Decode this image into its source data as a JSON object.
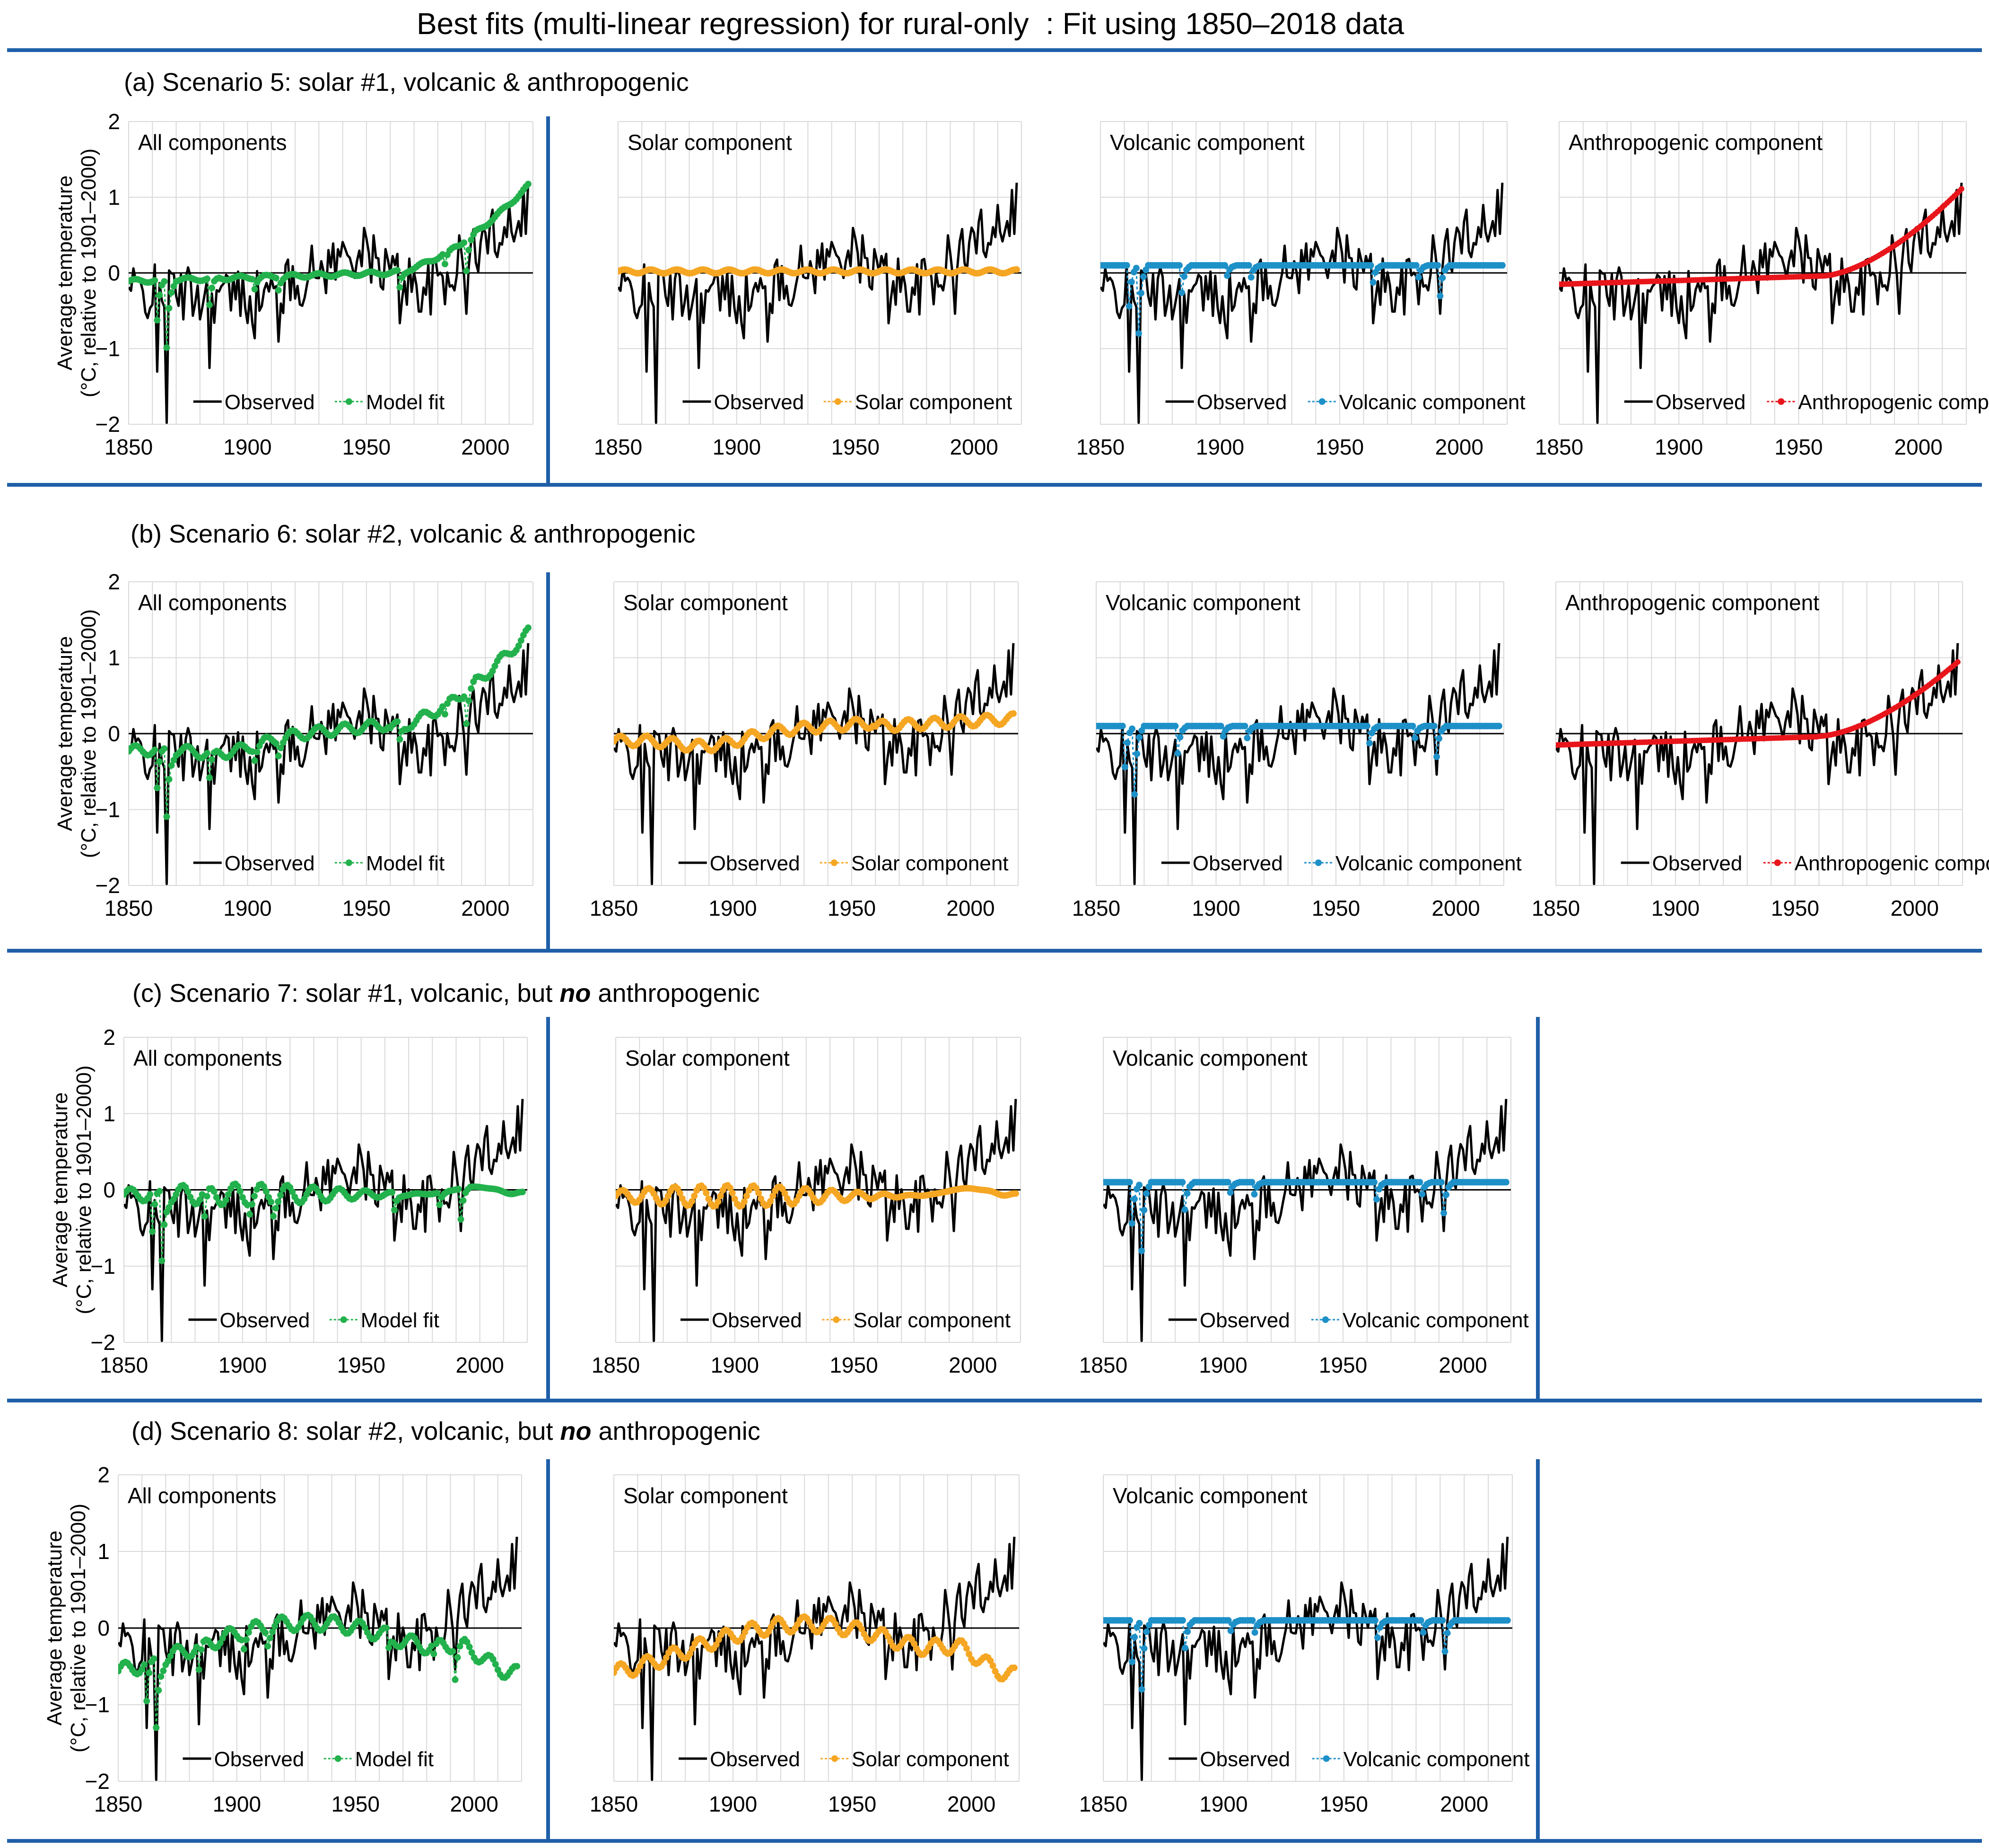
{
  "title": "Best fits (multi-linear regression) for rural-only  : Fit using 1850–2018 data",
  "colors": {
    "rule": "#1f5fa8",
    "observed": "#000000",
    "grid": "#d9d9d9",
    "zero": "#000000",
    "model": "#22b14c",
    "solar": "#f5a623",
    "volcanic": "#1e90c8",
    "anthropogenic": "#e8151b"
  },
  "rows": [
    {
      "label_prefix": "(a) Scenario 5: solar #1, volcanic ",
      "label_bold": "",
      "label_suffix": "& anthropogenic"
    },
    {
      "label_prefix": "(b) Scenario 6: solar #2, volcanic ",
      "label_bold": "",
      "label_suffix": "& anthropogenic"
    },
    {
      "label_prefix": "(c) Scenario 7: solar #1, volcanic, but ",
      "label_bold": "no",
      "label_suffix": " anthropogenic"
    },
    {
      "label_prefix": "(d) Scenario 8: solar #2, volcanic, but ",
      "label_bold": "no",
      "label_suffix": " anthropogenic"
    }
  ],
  "chart_data": [
    {
      "id": "a1",
      "type": "line",
      "panel_title": "All components",
      "ylabel_line1": "Average temperature",
      "ylabel_line2": "(°C, relative to 1901–2000)",
      "x_ticks": [
        1850,
        1900,
        1950,
        2000
      ],
      "y_ticks": [
        2,
        1,
        0,
        -1,
        -2
      ],
      "y_tick_labels": [
        "2",
        "1",
        "0",
        "−1",
        "−2"
      ],
      "xlim": [
        1850,
        2020
      ],
      "ylim": [
        -2,
        2
      ],
      "series": [
        {
          "name": "Observed",
          "role": "observed"
        },
        {
          "name": "Model fit",
          "role": "model",
          "model": "fit",
          "solar": 1,
          "anthro": true
        }
      ]
    },
    {
      "id": "a2",
      "type": "line",
      "panel_title": "Solar component",
      "x_ticks": [
        1850,
        1900,
        1950,
        2000
      ],
      "xlim": [
        1850,
        2020
      ],
      "ylim": [
        -2,
        2
      ],
      "series": [
        {
          "name": "Observed",
          "role": "observed"
        },
        {
          "name": "Solar component",
          "role": "solar",
          "model": "solar",
          "solar": 1
        }
      ]
    },
    {
      "id": "a3",
      "type": "line",
      "panel_title": "Volcanic component",
      "x_ticks": [
        1850,
        1900,
        1950,
        2000
      ],
      "xlim": [
        1850,
        2020
      ],
      "ylim": [
        -2,
        2
      ],
      "series": [
        {
          "name": "Observed",
          "role": "observed"
        },
        {
          "name": "Volcanic component",
          "role": "volcanic",
          "model": "volcanic"
        }
      ]
    },
    {
      "id": "a4",
      "type": "line",
      "panel_title": "Anthropogenic component",
      "x_ticks": [
        1850,
        1900,
        1950,
        2000
      ],
      "xlim": [
        1850,
        2020
      ],
      "ylim": [
        -2,
        2
      ],
      "series": [
        {
          "name": "Observed",
          "role": "observed"
        },
        {
          "name": "Anthropogenic component",
          "role": "anthropogenic",
          "model": "anthro",
          "scale": 1.0
        }
      ]
    },
    {
      "id": "b1",
      "type": "line",
      "panel_title": "All components",
      "ylabel_line1": "Average temperature",
      "ylabel_line2": "(°C, relative to 1901–2000)",
      "x_ticks": [
        1850,
        1900,
        1950,
        2000
      ],
      "y_ticks": [
        2,
        1,
        0,
        -1,
        -2
      ],
      "y_tick_labels": [
        "2",
        "1",
        "0",
        "−1",
        "−2"
      ],
      "xlim": [
        1850,
        2020
      ],
      "ylim": [
        -2,
        2
      ],
      "series": [
        {
          "name": "Observed",
          "role": "observed"
        },
        {
          "name": "Model fit",
          "role": "model",
          "model": "fit",
          "solar": 2,
          "anthro": true
        }
      ]
    },
    {
      "id": "b2",
      "type": "line",
      "panel_title": "Solar component",
      "x_ticks": [
        1850,
        1900,
        1950,
        2000
      ],
      "xlim": [
        1850,
        2020
      ],
      "ylim": [
        -2,
        2
      ],
      "series": [
        {
          "name": "Observed",
          "role": "observed"
        },
        {
          "name": "Solar component",
          "role": "solar",
          "model": "solar",
          "solar": 2
        }
      ]
    },
    {
      "id": "b3",
      "type": "line",
      "panel_title": "Volcanic component",
      "x_ticks": [
        1850,
        1900,
        1950,
        2000
      ],
      "xlim": [
        1850,
        2020
      ],
      "ylim": [
        -2,
        2
      ],
      "series": [
        {
          "name": "Observed",
          "role": "observed"
        },
        {
          "name": "Volcanic component",
          "role": "volcanic",
          "model": "volcanic"
        }
      ]
    },
    {
      "id": "b4",
      "type": "line",
      "panel_title": "Anthropogenic component",
      "x_ticks": [
        1850,
        1900,
        1950,
        2000
      ],
      "xlim": [
        1850,
        2020
      ],
      "ylim": [
        -2,
        2
      ],
      "series": [
        {
          "name": "Observed",
          "role": "observed"
        },
        {
          "name": "Anthropogenic component",
          "role": "anthropogenic",
          "model": "anthro",
          "scale": 0.85
        }
      ]
    },
    {
      "id": "c1",
      "type": "line",
      "panel_title": "All components",
      "ylabel_line1": "Average temperature",
      "ylabel_line2": "(°C, relative to 1901–2000)",
      "x_ticks": [
        1850,
        1900,
        1950,
        2000
      ],
      "y_ticks": [
        2,
        1,
        0,
        -1,
        -2
      ],
      "y_tick_labels": [
        "2",
        "1",
        "0",
        "−1",
        "−2"
      ],
      "xlim": [
        1850,
        2020
      ],
      "ylim": [
        -2,
        2
      ],
      "series": [
        {
          "name": "Observed",
          "role": "observed"
        },
        {
          "name": "Model fit",
          "role": "model",
          "model": "fit",
          "solar": 3,
          "anthro": false
        }
      ]
    },
    {
      "id": "c2",
      "type": "line",
      "panel_title": "Solar component",
      "x_ticks": [
        1850,
        1900,
        1950,
        2000
      ],
      "xlim": [
        1850,
        2020
      ],
      "ylim": [
        -2,
        2
      ],
      "series": [
        {
          "name": "Observed",
          "role": "observed"
        },
        {
          "name": "Solar component",
          "role": "solar",
          "model": "solar",
          "solar": 3
        }
      ]
    },
    {
      "id": "c3",
      "type": "line",
      "panel_title": "Volcanic component",
      "x_ticks": [
        1850,
        1900,
        1950,
        2000
      ],
      "xlim": [
        1850,
        2020
      ],
      "ylim": [
        -2,
        2
      ],
      "series": [
        {
          "name": "Observed",
          "role": "observed"
        },
        {
          "name": "Volcanic component",
          "role": "volcanic",
          "model": "volcanic"
        }
      ]
    },
    {
      "id": "d1",
      "type": "line",
      "panel_title": "All components",
      "ylabel_line1": "Average temperature",
      "ylabel_line2": "(°C, relative to 1901–2000)",
      "x_ticks": [
        1850,
        1900,
        1950,
        2000
      ],
      "y_ticks": [
        2,
        1,
        0,
        -1,
        -2
      ],
      "y_tick_labels": [
        "2",
        "1",
        "0",
        "−1",
        "−2"
      ],
      "xlim": [
        1850,
        2020
      ],
      "ylim": [
        -2,
        2
      ],
      "series": [
        {
          "name": "Observed",
          "role": "observed"
        },
        {
          "name": "Model fit",
          "role": "model",
          "model": "fit",
          "solar": 4,
          "anthro": false
        }
      ]
    },
    {
      "id": "d2",
      "type": "line",
      "panel_title": "Solar component",
      "x_ticks": [
        1850,
        1900,
        1950,
        2000
      ],
      "xlim": [
        1850,
        2020
      ],
      "ylim": [
        -2,
        2
      ],
      "series": [
        {
          "name": "Observed",
          "role": "observed"
        },
        {
          "name": "Solar component",
          "role": "solar",
          "model": "solar",
          "solar": 4
        }
      ]
    },
    {
      "id": "d3",
      "type": "line",
      "panel_title": "Volcanic component",
      "x_ticks": [
        1850,
        1900,
        1950,
        2000
      ],
      "xlim": [
        1850,
        2020
      ],
      "ylim": [
        -2,
        2
      ],
      "series": [
        {
          "name": "Observed",
          "role": "observed"
        },
        {
          "name": "Volcanic component",
          "role": "volcanic",
          "model": "volcanic"
        }
      ]
    }
  ]
}
